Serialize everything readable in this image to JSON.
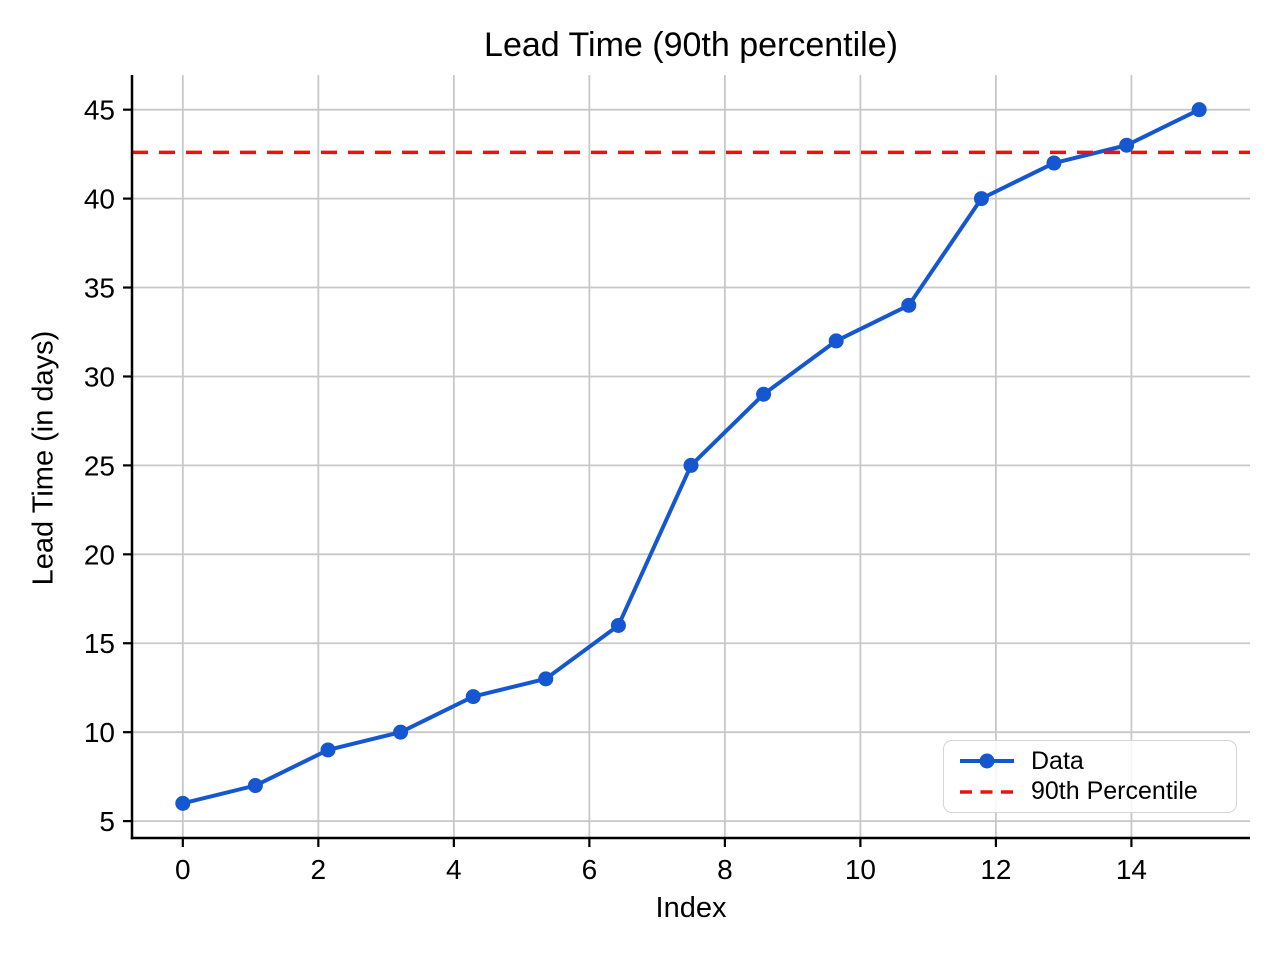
{
  "chart_data": {
    "type": "line",
    "title": "Lead Time (90th percentile)",
    "xlabel": "Index",
    "ylabel": "Lead Time (in days)",
    "x": [
      0,
      1.071,
      2.143,
      3.214,
      4.286,
      5.357,
      6.429,
      7.5,
      8.571,
      9.643,
      10.714,
      11.786,
      12.857,
      13.929,
      15
    ],
    "y": [
      6,
      7,
      9,
      10,
      12,
      13,
      16,
      25,
      29,
      32,
      34,
      40,
      42,
      43,
      45
    ],
    "percentile_line": {
      "label": "90th Percentile",
      "value": 42.6
    },
    "series_label": "Data",
    "xlim": [
      -0.75,
      15.75
    ],
    "ylim": [
      4.05,
      46.95
    ],
    "xticks": [
      0,
      2,
      4,
      6,
      8,
      10,
      12,
      14
    ],
    "yticks": [
      5,
      10,
      15,
      20,
      25,
      30,
      35,
      40,
      45
    ],
    "grid": true,
    "legend_position": "lower right",
    "colors": {
      "data": "#1457d0",
      "percentile": "#ee1111",
      "grid": "#c8c8c8",
      "axis": "#000000"
    }
  },
  "legend": {
    "items": [
      {
        "label": "Data"
      },
      {
        "label": "90th Percentile"
      }
    ]
  }
}
